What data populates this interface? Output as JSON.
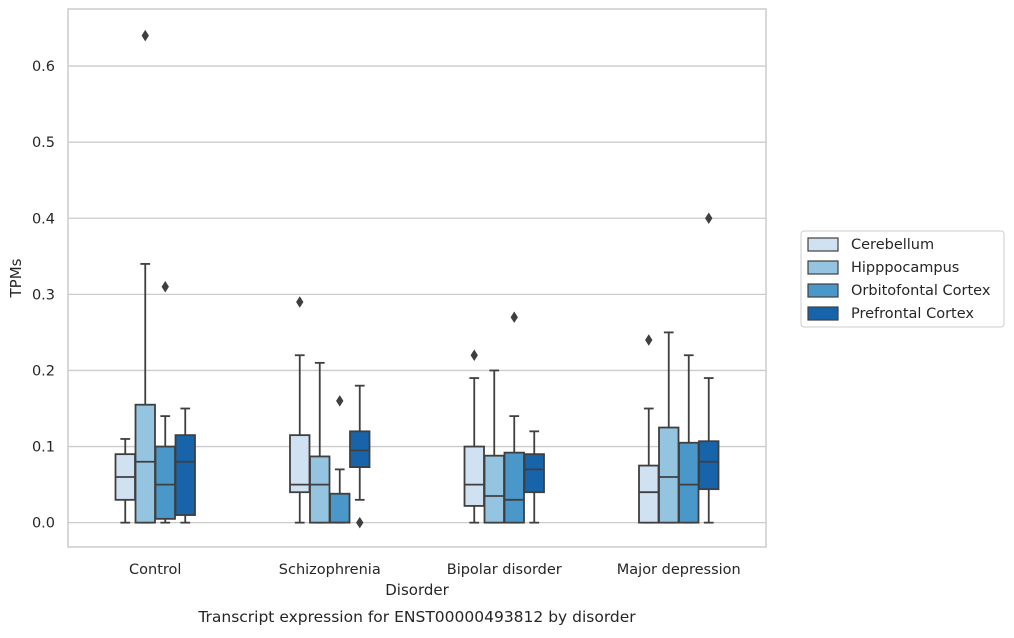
{
  "chart_data": {
    "type": "box",
    "caption": "Transcript expression for ENST00000493812 by disorder",
    "xlabel": "Disorder",
    "ylabel": "TPMs",
    "ylim": [
      -0.032,
      0.675
    ],
    "yticks": [
      "0.0",
      "0.1",
      "0.2",
      "0.3",
      "0.4",
      "0.5",
      "0.6"
    ],
    "ytick_values": [
      0.0,
      0.1,
      0.2,
      0.3,
      0.4,
      0.5,
      0.6
    ],
    "grid": "horizontal",
    "legend_position": "right",
    "categories": [
      "Control",
      "Schizophrenia",
      "Bipolar disorder",
      "Major depression"
    ],
    "series": [
      {
        "name": "Cerebellum",
        "color": "#d0e1f2",
        "boxes": [
          {
            "whislo": 0.0,
            "q1": 0.03,
            "med": 0.06,
            "q3": 0.09,
            "whishi": 0.11,
            "fliers": []
          },
          {
            "whislo": 0.0,
            "q1": 0.04,
            "med": 0.05,
            "q3": 0.115,
            "whishi": 0.22,
            "fliers": [
              0.29
            ]
          },
          {
            "whislo": 0.0,
            "q1": 0.022,
            "med": 0.05,
            "q3": 0.1,
            "whishi": 0.19,
            "fliers": [
              0.22
            ]
          },
          {
            "whislo": 0.0,
            "q1": 0.0,
            "med": 0.04,
            "q3": 0.075,
            "whishi": 0.15,
            "fliers": [
              0.24
            ]
          }
        ]
      },
      {
        "name": "Hipppocampus",
        "color": "#94c4df",
        "boxes": [
          {
            "whislo": 0.0,
            "q1": 0.0,
            "med": 0.08,
            "q3": 0.155,
            "whishi": 0.34,
            "fliers": [
              0.64
            ]
          },
          {
            "whislo": 0.0,
            "q1": 0.0,
            "med": 0.05,
            "q3": 0.087,
            "whishi": 0.21,
            "fliers": []
          },
          {
            "whislo": 0.0,
            "q1": 0.0,
            "med": 0.035,
            "q3": 0.088,
            "whishi": 0.2,
            "fliers": []
          },
          {
            "whislo": 0.0,
            "q1": 0.0,
            "med": 0.06,
            "q3": 0.125,
            "whishi": 0.25,
            "fliers": []
          }
        ]
      },
      {
        "name": "Orbitofontal Cortex",
        "color": "#4a98c9",
        "boxes": [
          {
            "whislo": 0.0,
            "q1": 0.005,
            "med": 0.05,
            "q3": 0.1,
            "whishi": 0.14,
            "fliers": [
              0.31
            ]
          },
          {
            "whislo": 0.0,
            "q1": 0.0,
            "med": 0.0,
            "q3": 0.038,
            "whishi": 0.07,
            "fliers": [
              0.16
            ]
          },
          {
            "whislo": 0.0,
            "q1": 0.0,
            "med": 0.03,
            "q3": 0.092,
            "whishi": 0.14,
            "fliers": [
              0.27
            ]
          },
          {
            "whislo": 0.0,
            "q1": 0.0,
            "med": 0.05,
            "q3": 0.105,
            "whishi": 0.22,
            "fliers": []
          }
        ]
      },
      {
        "name": "Prefrontal Cortex",
        "color": "#1764ab",
        "boxes": [
          {
            "whislo": 0.0,
            "q1": 0.01,
            "med": 0.08,
            "q3": 0.115,
            "whishi": 0.15,
            "fliers": []
          },
          {
            "whislo": 0.03,
            "q1": 0.073,
            "med": 0.095,
            "q3": 0.12,
            "whishi": 0.18,
            "fliers": [
              0.0
            ]
          },
          {
            "whislo": 0.0,
            "q1": 0.04,
            "med": 0.07,
            "q3": 0.09,
            "whishi": 0.12,
            "fliers": []
          },
          {
            "whislo": 0.0,
            "q1": 0.044,
            "med": 0.08,
            "q3": 0.107,
            "whishi": 0.19,
            "fliers": [
              0.4
            ]
          }
        ]
      }
    ]
  }
}
